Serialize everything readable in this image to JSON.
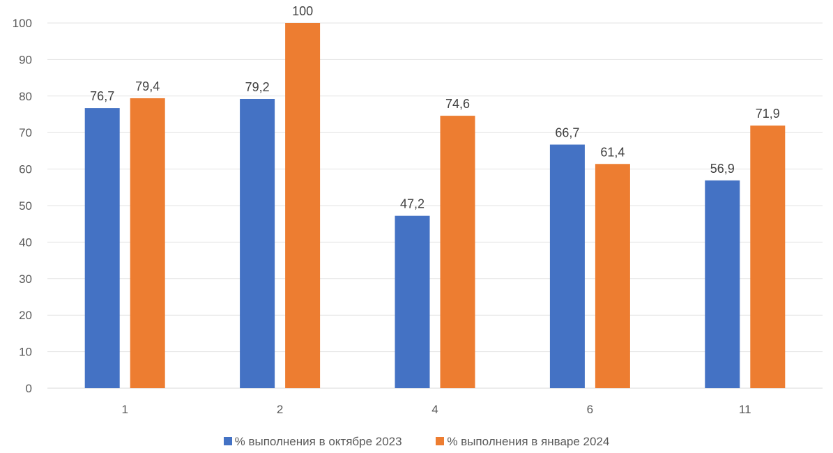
{
  "chart_data": {
    "type": "bar",
    "categories": [
      "1",
      "2",
      "4",
      "6",
      "11"
    ],
    "series": [
      {
        "name": "% выполнения в  октябре 2023",
        "color": "#4472C4",
        "values": [
          76.7,
          79.2,
          47.2,
          66.7,
          56.9
        ],
        "labels": [
          "76,7",
          "79,2",
          "47,2",
          "66,7",
          "56,9"
        ]
      },
      {
        "name": "% выполнения в  январе 2024",
        "color": "#ED7D31",
        "values": [
          79.4,
          100,
          74.6,
          61.4,
          71.9
        ],
        "labels": [
          "79,4",
          "100",
          "74,6",
          "61,4",
          "71,9"
        ]
      }
    ],
    "ylim": [
      0,
      100
    ],
    "yticks": [
      "0",
      "10",
      "20",
      "30",
      "40",
      "50",
      "60",
      "70",
      "80",
      "90",
      "100"
    ],
    "grid": true,
    "legend_position": "bottom"
  }
}
